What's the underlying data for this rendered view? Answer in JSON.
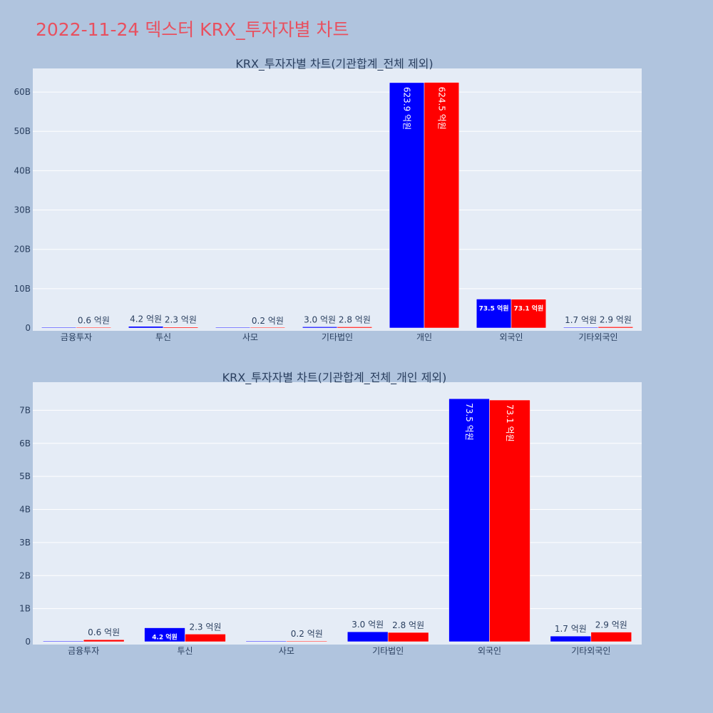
{
  "page_title": "2022-11-24 덱스터 KRX_투자자별 차트",
  "colors": {
    "series1": "#0000ff",
    "series2": "#ff0000",
    "title": "#e8505f",
    "page_bg": "#b0c4de",
    "plot_bg": "#e5ecf6"
  },
  "chart_data": [
    {
      "type": "bar",
      "title": "KRX_투자자별 차트(기관합계_전체 제외)",
      "categories": [
        "금융투자",
        "투신",
        "사모",
        "기타법인",
        "개인",
        "외국인",
        "기타외국인"
      ],
      "yticks": [
        "0",
        "10B",
        "20B",
        "30B",
        "40B",
        "50B",
        "60B"
      ],
      "ylim": [
        0,
        66000000000
      ],
      "series": [
        {
          "values": [
            0,
            420000000,
            0,
            300000000,
            62390000000,
            7350000000,
            170000000
          ],
          "labels": [
            "",
            "4.2 억원",
            "",
            "3.0 억원",
            "623.9 억원",
            "73.5 억원",
            "1.7 억원"
          ]
        },
        {
          "values": [
            60000000,
            230000000,
            20000000,
            280000000,
            62450000000,
            7310000000,
            290000000
          ],
          "labels": [
            "0.6 억원",
            "2.3 억원",
            "0.2 억원",
            "2.8 억원",
            "624.5 억원",
            "73.1 억원",
            "2.9 억원"
          ]
        }
      ]
    },
    {
      "type": "bar",
      "title": "KRX_투자자별 차트(기관합계_전체_개인 제외)",
      "categories": [
        "금융투자",
        "투신",
        "사모",
        "기타법인",
        "외국인",
        "기타외국인"
      ],
      "yticks": [
        "0",
        "1B",
        "2B",
        "3B",
        "4B",
        "5B",
        "6B",
        "7B"
      ],
      "ylim": [
        0,
        7850000000
      ],
      "series": [
        {
          "values": [
            0,
            420000000,
            0,
            300000000,
            7350000000,
            170000000
          ],
          "labels": [
            "",
            "4.2 억원",
            "",
            "3.0 억원",
            "73.5 억원",
            "1.7 억원"
          ]
        },
        {
          "values": [
            60000000,
            230000000,
            20000000,
            280000000,
            7310000000,
            290000000
          ],
          "labels": [
            "0.6 억원",
            "2.3 억원",
            "0.2 억원",
            "2.8 억원",
            "73.1 억원",
            "2.9 억원"
          ]
        }
      ]
    }
  ]
}
